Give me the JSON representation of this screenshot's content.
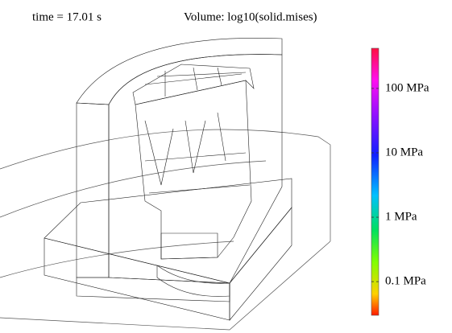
{
  "header": {
    "time": "time = 17.01 s",
    "expression": "Volume: log10(solid.mises)"
  },
  "colorbar": {
    "log": true,
    "lim": [
      0.03,
      420
    ],
    "ticks": [
      {
        "value": 0.1,
        "label": "0.1 MPa"
      },
      {
        "value": 1,
        "label": "1 MPa"
      },
      {
        "value": 10,
        "label": "10 MPa"
      },
      {
        "value": 100,
        "label": "100 MPa"
      }
    ]
  }
}
